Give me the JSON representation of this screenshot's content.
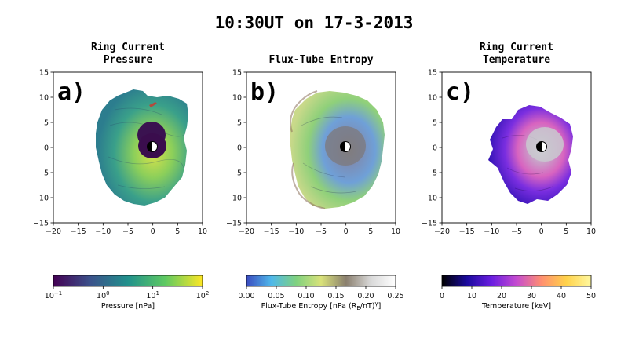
{
  "suptitle": "10:30UT on 17-3-2013",
  "chart_data": [
    {
      "type": "heatmap",
      "panel_label": "a)",
      "title_lines": [
        "Ring Current",
        "Pressure"
      ],
      "xlim": [
        -20,
        10
      ],
      "ylim": [
        -15,
        15
      ],
      "xticks": [
        "−20",
        "−15",
        "−10",
        "−5",
        "0",
        "5",
        "10"
      ],
      "yticks": [
        "15",
        "10",
        "5",
        "0",
        "−5",
        "−10",
        "−15"
      ],
      "colorbar": {
        "label": "Pressure [nPa]",
        "scale": "log",
        "range": [
          0.1,
          100
        ],
        "ticks": [
          {
            "base": "10",
            "exp": "−1"
          },
          {
            "base": "10",
            "exp": "0"
          },
          {
            "base": "10",
            "exp": "1"
          },
          {
            "base": "10",
            "exp": "2"
          }
        ],
        "colors": [
          "#440154",
          "#3b528b",
          "#21918c",
          "#5ec962",
          "#fde725"
        ]
      }
    },
    {
      "type": "heatmap",
      "panel_label": "b)",
      "title_lines": [
        "Flux-Tube Entropy"
      ],
      "xlim": [
        -20,
        10
      ],
      "ylim": [
        -15,
        15
      ],
      "xticks": [
        "−20",
        "−15",
        "−10",
        "−5",
        "0",
        "5",
        "10"
      ],
      "yticks": [
        "15",
        "10",
        "5",
        "0",
        "−5",
        "−10",
        "−15"
      ],
      "colorbar": {
        "label": "Flux-Tube Entropy [nPa (R_E/nT)^γ]",
        "label_parts": {
          "pre": "Flux-Tube Entropy [nPa (R",
          "sub": "E",
          "mid": "/nT)",
          "sup": "γ",
          "post": "]"
        },
        "scale": "linear",
        "range": [
          0,
          0.25
        ],
        "ticks": [
          "0.00",
          "0.05",
          "0.10",
          "0.15",
          "0.20",
          "0.25"
        ],
        "colors": [
          "#3b4cc0",
          "#4fb8ea",
          "#7fd17f",
          "#d9e27a",
          "#8a7f6e",
          "#d9d9d9",
          "#ffffff"
        ]
      }
    },
    {
      "type": "heatmap",
      "panel_label": "c)",
      "title_lines": [
        "Ring Current",
        "Temperature"
      ],
      "xlim": [
        -20,
        10
      ],
      "ylim": [
        -15,
        15
      ],
      "xticks": [
        "−20",
        "−15",
        "−10",
        "−5",
        "0",
        "5",
        "10"
      ],
      "yticks": [
        "15",
        "10",
        "5",
        "0",
        "−5",
        "−10",
        "−15"
      ],
      "colorbar": {
        "label": "Temperature [keV]",
        "scale": "linear",
        "range": [
          0,
          50
        ],
        "ticks": [
          "0",
          "10",
          "20",
          "30",
          "40",
          "50"
        ],
        "colors": [
          "#000000",
          "#1a0a9e",
          "#6a1ee0",
          "#c44bd0",
          "#ff8f70",
          "#ffd24a",
          "#fff8a0"
        ]
      }
    }
  ]
}
